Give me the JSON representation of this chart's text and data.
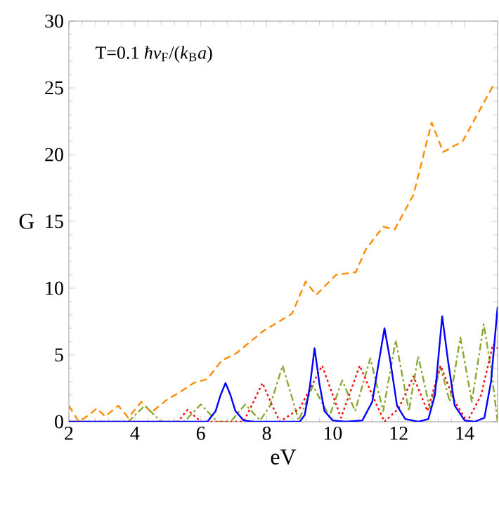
{
  "chart_data": {
    "type": "line",
    "xlabel": "eV",
    "ylabel": "G",
    "annotations": [
      "T=0.1 *ħv*$_{F}$/(*k*$_{B}$*a*)"
    ],
    "xlim": [
      2,
      15
    ],
    "ylim": [
      0,
      30
    ],
    "xticks": [
      2,
      4,
      6,
      8,
      10,
      12,
      14
    ],
    "yticks": [
      0,
      5,
      10,
      15,
      20,
      25,
      30
    ],
    "grid": false,
    "series": [
      {
        "color": "#ff8c00",
        "line_style": "dashed",
        "x": [
          2,
          2.3,
          2.6,
          2.85,
          3.1,
          3.5,
          3.8,
          4.2,
          4.5,
          5.0,
          5.36,
          5.78,
          6.2,
          6.64,
          7.06,
          7.9,
          8.77,
          9.18,
          9.5,
          10.1,
          10.7,
          11.0,
          11.53,
          11.88,
          12.45,
          13.0,
          13.35,
          13.94,
          14.85,
          15
        ],
        "values": [
          1.2,
          0.0,
          0.5,
          1.0,
          0.4,
          1.2,
          0.3,
          1.5,
          0.7,
          1.7,
          2.2,
          2.9,
          3.2,
          4.6,
          5.1,
          6.8,
          8.1,
          10.5,
          9.5,
          11.0,
          11.2,
          12.9,
          14.6,
          14.4,
          17.0,
          22.4,
          20.2,
          21.0,
          25.1,
          25.0
        ]
      },
      {
        "color": "#88aa33",
        "line_style": "dashdot",
        "x": [
          2,
          3.8,
          4.3,
          4.8,
          5.5,
          6.0,
          6.5,
          6.9,
          7.35,
          7.8,
          8.1,
          8.48,
          8.97,
          9.4,
          9.9,
          10.29,
          10.68,
          11.14,
          11.53,
          11.91,
          12.31,
          12.59,
          12.95,
          13.27,
          13.55,
          13.87,
          14.22,
          14.58,
          14.8,
          15
        ],
        "values": [
          0,
          0,
          1.2,
          0,
          0,
          1.3,
          0,
          0,
          1.3,
          0.1,
          1.2,
          4.2,
          0.1,
          2.7,
          0.4,
          3.1,
          0.8,
          4.75,
          0.8,
          6.1,
          0.8,
          4.9,
          1.0,
          4.1,
          1.5,
          6.3,
          1.5,
          7.3,
          4.0,
          0
        ]
      },
      {
        "color": "#ff0000",
        "line_style": "dotted",
        "x": [
          2,
          5.3,
          5.6,
          6.0,
          7.3,
          7.6,
          7.87,
          8.15,
          8.4,
          9.0,
          9.68,
          10.25,
          10.82,
          11.2,
          11.57,
          12.0,
          12.45,
          12.87,
          13.27,
          13.7,
          14.08,
          14.5,
          14.86,
          15
        ],
        "values": [
          0,
          0,
          0.9,
          0,
          0,
          1.5,
          2.9,
          1.3,
          0,
          1.0,
          4.2,
          0.3,
          4.2,
          2.0,
          0,
          1.0,
          3.4,
          0.8,
          4.2,
          1.5,
          0,
          2.0,
          5.8,
          5.5
        ]
      },
      {
        "color": "#0000ff",
        "line_style": "solid",
        "x": [
          2,
          6.2,
          6.45,
          6.6,
          6.75,
          6.9,
          7.05,
          7.3,
          7.6,
          9.0,
          9.15,
          9.3,
          9.45,
          9.6,
          9.75,
          10.0,
          10.4,
          10.9,
          11.2,
          11.4,
          11.57,
          11.75,
          11.95,
          12.2,
          12.6,
          12.9,
          13.1,
          13.32,
          13.5,
          13.7,
          14.0,
          14.3,
          14.6,
          14.8,
          15
        ],
        "values": [
          0,
          0,
          0.8,
          2.0,
          2.9,
          2.0,
          0.8,
          0.1,
          0,
          0,
          0.5,
          2.5,
          5.5,
          2.8,
          0.8,
          0.1,
          0,
          0.1,
          1.5,
          4.5,
          7.0,
          4.5,
          1.2,
          0.2,
          0,
          0.2,
          2.0,
          7.9,
          4.5,
          1.2,
          0.1,
          0,
          0.3,
          3.0,
          8.6
        ]
      }
    ]
  }
}
